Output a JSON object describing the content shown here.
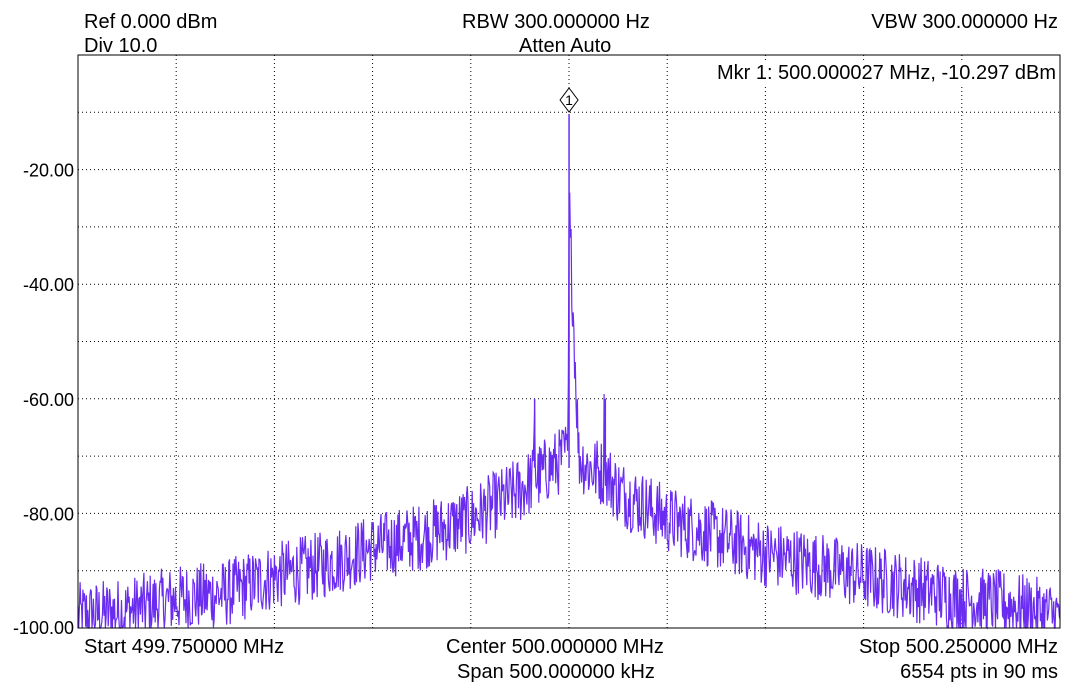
{
  "header": {
    "ref": "Ref 0.000 dBm",
    "div": "Div 10.0",
    "rbw": "RBW 300.000000 Hz",
    "atten": "Atten Auto",
    "vbw": "VBW 300.000000 Hz"
  },
  "marker": {
    "label": "1",
    "readout": "Mkr 1: 500.000027 MHz, -10.297 dBm"
  },
  "footer": {
    "start": "Start 499.750000 MHz",
    "center": "Center 500.000000 MHz",
    "span": "Span 500.000000 kHz",
    "stop": "Stop 500.250000 MHz",
    "points": "6554 pts in 90 ms"
  },
  "chart_data": {
    "type": "line",
    "x_unit": "MHz",
    "y_unit": "dBm",
    "xlim": [
      499.75,
      500.25
    ],
    "ylim": [
      -100,
      0
    ],
    "grid": true,
    "ytick_labels": [
      "-20.00",
      "-40.00",
      "-60.00",
      "-80.00",
      "-100.00"
    ],
    "ytick_values": [
      -20,
      -40,
      -60,
      -80,
      -100
    ],
    "trace_color": "#6a2cf0",
    "marker_point": {
      "x": 500.000027,
      "y": -10.297
    },
    "series": [
      {
        "x": [
          499.75,
          499.775,
          499.8,
          499.825,
          499.85,
          499.875,
          499.9,
          499.925,
          499.95,
          499.965,
          499.975,
          499.982,
          499.9825,
          499.983,
          499.99,
          499.995,
          499.9995,
          500.0,
          500.00003,
          500.0005,
          500.005,
          500.01,
          500.0175,
          500.018,
          500.0185,
          500.025,
          500.035,
          500.05,
          500.075,
          500.1,
          500.125,
          500.15,
          500.175,
          500.2,
          500.225,
          500.25
        ],
        "y": [
          -98,
          -97,
          -95,
          -94,
          -91,
          -89,
          -86,
          -84,
          -81,
          -78,
          -76,
          -74,
          -60,
          -74,
          -72,
          -71,
          -69,
          -30,
          -10.297,
          -30,
          -70,
          -72,
          -73,
          -60,
          -73,
          -76,
          -78,
          -81,
          -84,
          -87,
          -89,
          -91,
          -93,
          -95,
          -96,
          -98
        ]
      }
    ]
  }
}
